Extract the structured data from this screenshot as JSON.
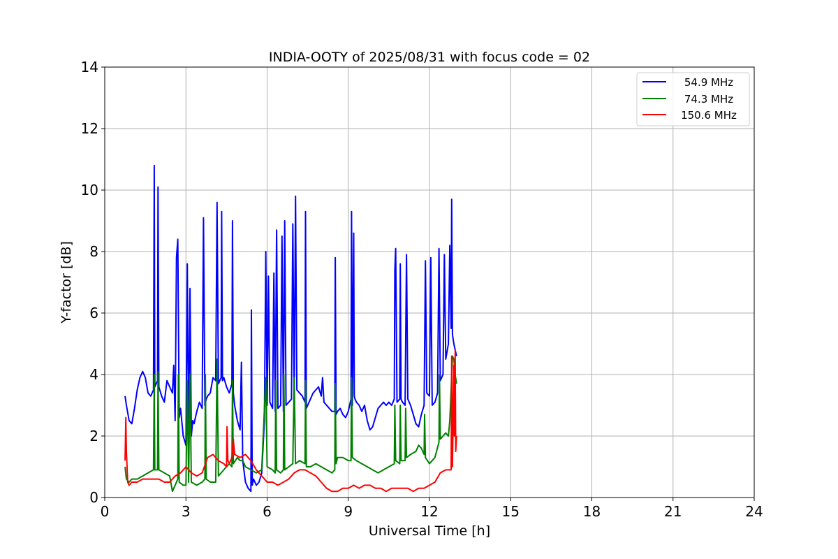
{
  "chart_data": {
    "type": "line",
    "title": "INDIA-OOTY of 2025/08/31 with focus code = 02",
    "xlabel": "Universal Time [h]",
    "ylabel": "Y-factor [dB]",
    "xlim": [
      0,
      24
    ],
    "ylim": [
      0,
      14
    ],
    "xticks": [
      0,
      3,
      6,
      9,
      12,
      15,
      18,
      21,
      24
    ],
    "yticks": [
      0,
      2,
      4,
      6,
      8,
      10,
      12,
      14
    ],
    "grid": true,
    "legend_position": "top-right",
    "series": [
      {
        "name": "54.9 MHz",
        "color": "#0000ff",
        "x": [
          0.75,
          0.8,
          0.9,
          1.0,
          1.1,
          1.2,
          1.3,
          1.4,
          1.5,
          1.6,
          1.7,
          1.8,
          1.83,
          1.85,
          1.9,
          1.95,
          1.97,
          2.0,
          2.1,
          2.2,
          2.3,
          2.4,
          2.5,
          2.55,
          2.6,
          2.65,
          2.7,
          2.75,
          2.8,
          2.9,
          3.0,
          3.05,
          3.1,
          3.15,
          3.2,
          3.25,
          3.3,
          3.4,
          3.5,
          3.6,
          3.65,
          3.7,
          3.75,
          3.8,
          3.9,
          4.0,
          4.1,
          4.15,
          4.2,
          4.3,
          4.32,
          4.35,
          4.4,
          4.5,
          4.6,
          4.7,
          4.72,
          4.75,
          4.8,
          4.9,
          5.0,
          5.05,
          5.1,
          5.2,
          5.3,
          5.4,
          5.42,
          5.45,
          5.5,
          5.6,
          5.7,
          5.8,
          5.9,
          5.95,
          6.0,
          6.05,
          6.1,
          6.2,
          6.25,
          6.3,
          6.35,
          6.4,
          6.5,
          6.55,
          6.6,
          6.65,
          6.7,
          6.8,
          6.9,
          6.95,
          7.0,
          7.05,
          7.1,
          7.2,
          7.3,
          7.4,
          7.42,
          7.45,
          7.5,
          7.6,
          7.7,
          7.8,
          7.9,
          8.0,
          8.05,
          8.1,
          8.2,
          8.3,
          8.4,
          8.5,
          8.52,
          8.55,
          8.6,
          8.7,
          8.8,
          8.9,
          9.0,
          9.1,
          9.12,
          9.15,
          9.2,
          9.22,
          9.25,
          9.3,
          9.4,
          9.5,
          9.6,
          9.7,
          9.8,
          9.9,
          10.0,
          10.1,
          10.2,
          10.3,
          10.4,
          10.5,
          10.6,
          10.7,
          10.72,
          10.75,
          10.8,
          10.9,
          10.92,
          10.95,
          11.0,
          11.1,
          11.15,
          11.2,
          11.3,
          11.4,
          11.5,
          11.6,
          11.7,
          11.8,
          11.85,
          11.9,
          12.0,
          12.05,
          12.1,
          12.2,
          12.3,
          12.35,
          12.4,
          12.5,
          12.55,
          12.6,
          12.7,
          12.75,
          12.8,
          12.82,
          12.85,
          12.9,
          12.95,
          13.0
        ],
        "values": [
          3.3,
          3.0,
          2.5,
          2.4,
          2.9,
          3.5,
          3.9,
          4.1,
          3.9,
          3.4,
          3.3,
          3.5,
          10.8,
          3.6,
          3.7,
          3.8,
          10.1,
          3.6,
          3.3,
          3.1,
          3.8,
          3.6,
          3.4,
          4.3,
          2.5,
          7.8,
          8.4,
          2.6,
          2.9,
          2.0,
          1.7,
          7.6,
          1.9,
          6.8,
          2.0,
          2.5,
          2.4,
          2.8,
          3.1,
          2.9,
          9.1,
          3.0,
          3.2,
          3.3,
          3.4,
          3.9,
          3.8,
          9.6,
          3.7,
          3.9,
          9.3,
          3.8,
          3.9,
          3.6,
          3.4,
          3.7,
          9.0,
          3.4,
          3.0,
          2.5,
          2.2,
          4.4,
          1.2,
          0.5,
          0.3,
          0.2,
          6.1,
          0.4,
          0.6,
          0.4,
          0.5,
          0.8,
          2.5,
          8.0,
          3.0,
          7.2,
          3.1,
          2.9,
          7.3,
          2.8,
          8.7,
          2.9,
          3.0,
          8.5,
          2.8,
          9.0,
          3.0,
          3.1,
          3.2,
          8.9,
          3.3,
          9.8,
          3.5,
          3.4,
          3.3,
          3.1,
          9.3,
          2.9,
          3.0,
          3.2,
          3.4,
          3.5,
          3.6,
          3.3,
          3.9,
          3.1,
          3.0,
          2.9,
          2.8,
          2.8,
          7.8,
          2.7,
          2.8,
          2.9,
          2.7,
          2.6,
          2.8,
          3.2,
          9.3,
          3.0,
          8.6,
          3.3,
          3.2,
          3.1,
          3.0,
          2.8,
          3.0,
          2.5,
          2.2,
          2.3,
          2.6,
          2.9,
          3.0,
          3.1,
          3.0,
          3.1,
          3.0,
          3.2,
          7.4,
          8.1,
          3.1,
          3.2,
          7.6,
          3.2,
          3.1,
          3.0,
          7.9,
          3.2,
          3.0,
          2.7,
          2.4,
          2.3,
          2.7,
          3.0,
          7.7,
          3.4,
          3.3,
          7.8,
          3.0,
          3.1,
          3.4,
          8.1,
          3.8,
          4.0,
          7.9,
          4.5,
          5.0,
          8.2,
          5.5,
          9.7,
          5.3,
          5.0,
          4.8,
          4.6
        ]
      },
      {
        "name": "74.3 MHz",
        "color": "#008000",
        "x": [
          0.75,
          0.8,
          0.9,
          1.0,
          1.2,
          1.4,
          1.6,
          1.8,
          1.83,
          1.85,
          1.95,
          1.97,
          2.0,
          2.2,
          2.4,
          2.5,
          2.55,
          2.6,
          2.7,
          2.72,
          2.75,
          2.9,
          3.0,
          3.05,
          3.1,
          3.15,
          3.2,
          3.4,
          3.6,
          3.7,
          3.72,
          3.75,
          3.9,
          4.1,
          4.15,
          4.2,
          4.4,
          4.6,
          4.7,
          4.72,
          4.75,
          4.9,
          5.0,
          5.1,
          5.2,
          5.4,
          5.6,
          5.8,
          5.95,
          6.0,
          6.2,
          6.3,
          6.32,
          6.35,
          6.5,
          6.6,
          6.62,
          6.65,
          6.8,
          6.95,
          7.0,
          7.05,
          7.2,
          7.4,
          7.42,
          7.45,
          7.6,
          7.8,
          8.0,
          8.2,
          8.4,
          8.5,
          8.52,
          8.55,
          8.6,
          8.8,
          9.0,
          9.1,
          9.12,
          9.15,
          9.3,
          9.5,
          9.7,
          9.9,
          10.1,
          10.3,
          10.5,
          10.7,
          10.72,
          10.75,
          10.9,
          10.92,
          10.95,
          11.1,
          11.12,
          11.15,
          11.3,
          11.5,
          11.6,
          11.7,
          11.8,
          11.82,
          11.85,
          12.0,
          12.2,
          12.35,
          12.37,
          12.4,
          12.5,
          12.6,
          12.7,
          12.75,
          12.8,
          12.85,
          12.9,
          12.95,
          13.0
        ],
        "values": [
          1.0,
          0.6,
          0.5,
          0.6,
          0.6,
          0.7,
          0.8,
          0.9,
          4.0,
          0.9,
          0.9,
          4.1,
          0.9,
          0.8,
          0.7,
          0.2,
          0.3,
          0.4,
          0.6,
          4.0,
          0.5,
          0.4,
          0.4,
          3.8,
          0.5,
          4.0,
          0.5,
          0.4,
          0.5,
          0.6,
          4.0,
          0.6,
          0.5,
          0.5,
          4.5,
          0.7,
          0.9,
          1.1,
          1.0,
          3.8,
          1.1,
          1.3,
          1.2,
          1.2,
          1.0,
          0.9,
          0.8,
          0.9,
          3.9,
          1.0,
          0.9,
          0.8,
          3.8,
          0.9,
          0.8,
          0.9,
          4.0,
          0.9,
          1.0,
          1.1,
          3.9,
          1.1,
          1.2,
          1.1,
          3.8,
          1.0,
          1.0,
          1.1,
          1.0,
          0.9,
          0.8,
          0.9,
          3.7,
          1.1,
          1.3,
          1.3,
          1.2,
          1.2,
          3.9,
          1.3,
          1.2,
          1.1,
          1.0,
          0.9,
          0.8,
          0.9,
          1.0,
          1.1,
          3.0,
          1.2,
          1.1,
          3.0,
          1.2,
          1.2,
          2.9,
          1.3,
          1.4,
          1.5,
          1.7,
          1.6,
          1.4,
          2.7,
          1.3,
          1.1,
          1.3,
          1.8,
          4.0,
          1.9,
          2.0,
          2.1,
          2.0,
          2.5,
          3.5,
          4.6,
          4.5,
          4.0,
          3.7
        ]
      },
      {
        "name": "150.6 MHz",
        "color": "#ff0000",
        "x": [
          0.75,
          0.78,
          0.8,
          0.85,
          0.9,
          1.0,
          1.2,
          1.4,
          1.6,
          1.8,
          2.0,
          2.2,
          2.4,
          2.5,
          2.6,
          2.8,
          3.0,
          3.2,
          3.4,
          3.6,
          3.8,
          4.0,
          4.2,
          4.4,
          4.5,
          4.52,
          4.55,
          4.6,
          4.7,
          4.75,
          4.8,
          5.0,
          5.2,
          5.4,
          5.6,
          5.8,
          6.0,
          6.2,
          6.4,
          6.6,
          6.8,
          7.0,
          7.2,
          7.4,
          7.6,
          7.8,
          8.0,
          8.2,
          8.4,
          8.6,
          8.8,
          9.0,
          9.2,
          9.4,
          9.6,
          9.8,
          10.0,
          10.2,
          10.4,
          10.6,
          10.8,
          11.0,
          11.2,
          11.4,
          11.6,
          11.8,
          12.0,
          12.2,
          12.4,
          12.6,
          12.8,
          12.82,
          12.85,
          12.9,
          12.92,
          12.95,
          12.97,
          13.0
        ],
        "values": [
          1.2,
          2.6,
          1.5,
          0.5,
          0.4,
          0.5,
          0.5,
          0.6,
          0.6,
          0.6,
          0.6,
          0.5,
          0.5,
          0.6,
          0.7,
          0.8,
          1.0,
          0.8,
          0.7,
          0.8,
          1.3,
          1.4,
          1.2,
          1.1,
          1.0,
          2.3,
          1.2,
          1.1,
          1.3,
          1.9,
          1.4,
          1.3,
          1.4,
          1.2,
          0.9,
          0.7,
          0.5,
          0.5,
          0.4,
          0.5,
          0.6,
          0.8,
          0.9,
          0.9,
          0.8,
          0.7,
          0.5,
          0.3,
          0.2,
          0.2,
          0.3,
          0.3,
          0.4,
          0.3,
          0.4,
          0.4,
          0.3,
          0.3,
          0.2,
          0.3,
          0.3,
          0.3,
          0.3,
          0.2,
          0.3,
          0.3,
          0.4,
          0.5,
          0.8,
          0.9,
          0.9,
          4.6,
          1.0,
          4.3,
          2.0,
          4.8,
          1.5,
          2.0
        ]
      }
    ]
  }
}
